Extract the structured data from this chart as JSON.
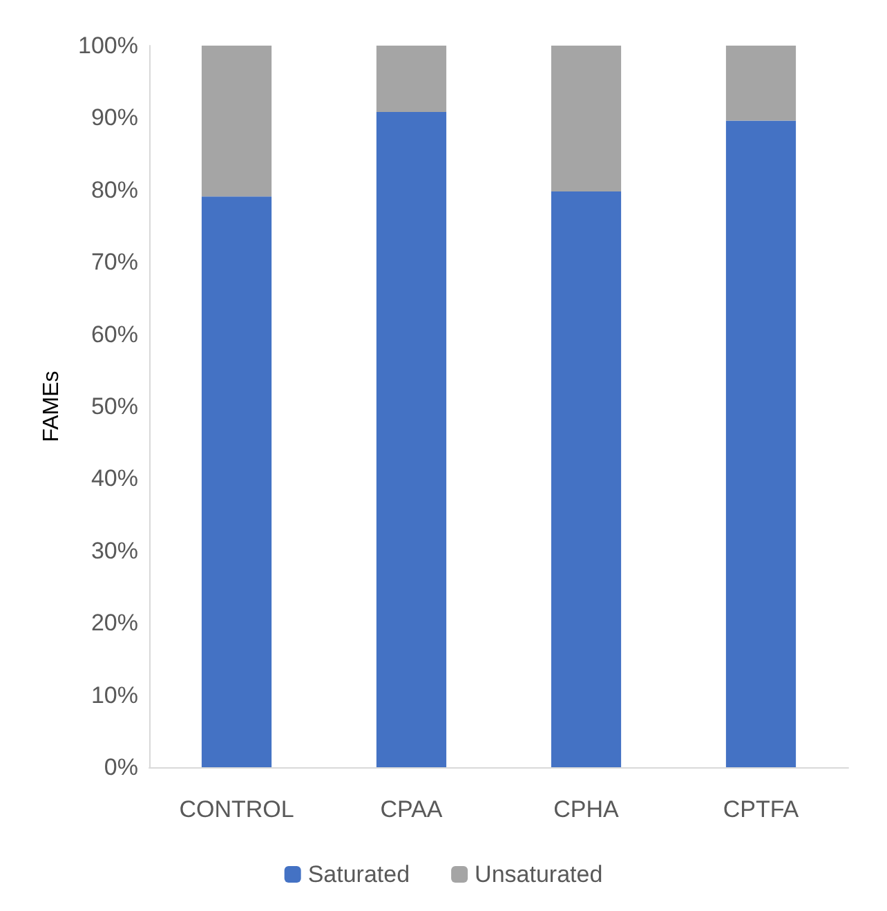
{
  "chart_data": {
    "type": "bar",
    "stacked": true,
    "ylabel": "FAMEs",
    "categories": [
      "CONTROL",
      "CPAA",
      "CPHA",
      "CPTFA"
    ],
    "series": [
      {
        "name": "Saturated",
        "color": "#4472c4",
        "values": [
          79.1,
          90.8,
          79.8,
          89.6
        ]
      },
      {
        "name": "Unsaturated",
        "color": "#a5a5a5",
        "values": [
          20.9,
          9.2,
          20.2,
          10.4
        ]
      }
    ],
    "ylim": [
      0,
      100
    ],
    "yticks": [
      {
        "value": 0,
        "label": "0%"
      },
      {
        "value": 10,
        "label": "10%"
      },
      {
        "value": 20,
        "label": "20%"
      },
      {
        "value": 30,
        "label": "30%"
      },
      {
        "value": 40,
        "label": "40%"
      },
      {
        "value": 50,
        "label": "50%"
      },
      {
        "value": 60,
        "label": "60%"
      },
      {
        "value": 70,
        "label": "70%"
      },
      {
        "value": 80,
        "label": "80%"
      },
      {
        "value": 90,
        "label": "90%"
      },
      {
        "value": 100,
        "label": "100%"
      }
    ],
    "grid": false,
    "legend": "bottom"
  }
}
